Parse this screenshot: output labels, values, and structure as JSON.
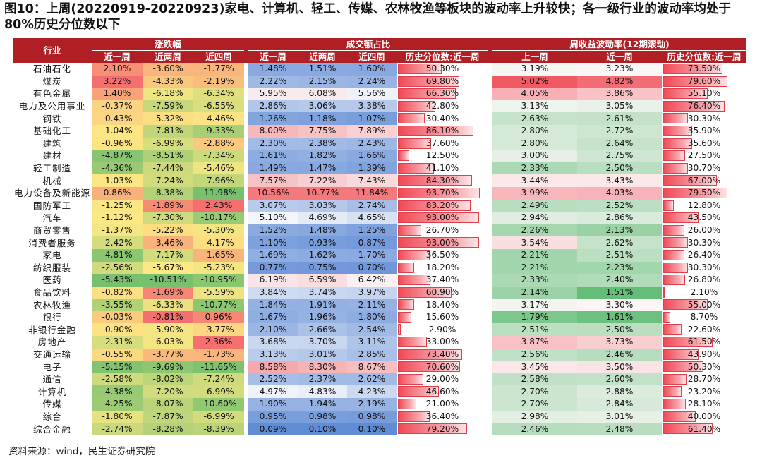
{
  "title": "图10：上周(20220919-20220923)家电、计算机、轻工、传媒、农林牧渔等板块的波动率上升较快；各一级行业的波动率均处于 80%历史分位数以下",
  "source": "资料来源：wind，民生证券研究院",
  "chart_data": {
    "type": "table",
    "group_headers": [
      "行业",
      "涨跌幅",
      "成交额占比",
      "周收益波动率(12期滚动)"
    ],
    "columns": [
      "近一周",
      "近两周",
      "近四周",
      "近一周",
      "近两周",
      "近四周",
      "历史分位数:近一周",
      "上一周",
      "近一周",
      "历史分位数:近一周"
    ],
    "rows": [
      {
        "industry": "石油石化",
        "chg": [
          "2.10%",
          "-3.60%",
          "-1.77%"
        ],
        "vol": [
          "1.48%",
          "1.51%",
          "1.60%"
        ],
        "vol_pct": "50.30%",
        "vol_pct_v": 50.3,
        "volat": [
          "3.19%",
          "3.23%"
        ],
        "volat_pct": "73.50%",
        "volat_pct_v": 73.5
      },
      {
        "industry": "煤炭",
        "chg": [
          "3.22%",
          "-4.33%",
          "-2.19%"
        ],
        "vol": [
          "2.22%",
          "2.15%",
          "2.24%"
        ],
        "vol_pct": "69.80%",
        "vol_pct_v": 69.8,
        "volat": [
          "5.02%",
          "4.82%"
        ],
        "volat_pct": "79.60%",
        "volat_pct_v": 79.6
      },
      {
        "industry": "有色金属",
        "chg": [
          "1.40%",
          "-6.18%",
          "-6.34%"
        ],
        "vol": [
          "5.95%",
          "6.08%",
          "5.56%"
        ],
        "vol_pct": "66.30%",
        "vol_pct_v": 66.3,
        "volat": [
          "4.05%",
          "3.86%"
        ],
        "volat_pct": "55.10%",
        "volat_pct_v": 55.1
      },
      {
        "industry": "电力及公用事业",
        "chg": [
          "-0.37%",
          "-7.59%",
          "-6.55%"
        ],
        "vol": [
          "2.86%",
          "3.06%",
          "3.38%"
        ],
        "vol_pct": "42.80%",
        "vol_pct_v": 42.8,
        "volat": [
          "3.13%",
          "3.05%"
        ],
        "volat_pct": "76.40%",
        "volat_pct_v": 76.4
      },
      {
        "industry": "钢铁",
        "chg": [
          "-0.43%",
          "-5.32%",
          "-4.46%"
        ],
        "vol": [
          "1.26%",
          "1.18%",
          "1.07%"
        ],
        "vol_pct": "30.40%",
        "vol_pct_v": 30.4,
        "volat": [
          "2.63%",
          "2.61%"
        ],
        "volat_pct": "30.30%",
        "volat_pct_v": 30.3
      },
      {
        "industry": "基础化工",
        "chg": [
          "-1.04%",
          "-7.81%",
          "-9.33%"
        ],
        "vol": [
          "8.00%",
          "7.75%",
          "7.89%"
        ],
        "vol_pct": "86.10%",
        "vol_pct_v": 86.1,
        "volat": [
          "2.80%",
          "2.72%"
        ],
        "volat_pct": "35.90%",
        "volat_pct_v": 35.9
      },
      {
        "industry": "建筑",
        "chg": [
          "-0.96%",
          "-6.99%",
          "-2.88%"
        ],
        "vol": [
          "2.30%",
          "2.38%",
          "2.43%"
        ],
        "vol_pct": "37.60%",
        "vol_pct_v": 37.6,
        "volat": [
          "2.80%",
          "2.64%"
        ],
        "volat_pct": "35.60%",
        "volat_pct_v": 35.6
      },
      {
        "industry": "建材",
        "chg": [
          "-4.87%",
          "-8.51%",
          "-7.34%"
        ],
        "vol": [
          "1.61%",
          "1.82%",
          "1.66%"
        ],
        "vol_pct": "12.50%",
        "vol_pct_v": 12.5,
        "volat": [
          "3.00%",
          "2.75%"
        ],
        "volat_pct": "27.50%",
        "volat_pct_v": 27.5
      },
      {
        "industry": "轻工制造",
        "chg": [
          "-4.36%",
          "-7.44%",
          "-5.46%"
        ],
        "vol": [
          "1.49%",
          "1.47%",
          "1.39%"
        ],
        "vol_pct": "41.10%",
        "vol_pct_v": 41.1,
        "volat": [
          "2.33%",
          "2.50%"
        ],
        "volat_pct": "30.70%",
        "volat_pct_v": 30.7
      },
      {
        "industry": "机械",
        "chg": [
          "-1.03%",
          "-7.24%",
          "-7.96%"
        ],
        "vol": [
          "7.57%",
          "7.22%",
          "7.43%"
        ],
        "vol_pct": "84.30%",
        "vol_pct_v": 84.3,
        "volat": [
          "3.44%",
          "3.43%"
        ],
        "volat_pct": "67.00%",
        "volat_pct_v": 67.0
      },
      {
        "industry": "电力设备及新能源",
        "chg": [
          "0.86%",
          "-8.38%",
          "-11.98%"
        ],
        "vol": [
          "10.56%",
          "10.77%",
          "11.84%"
        ],
        "vol_pct": "93.70%",
        "vol_pct_v": 93.7,
        "volat": [
          "3.99%",
          "4.03%"
        ],
        "volat_pct": "79.50%",
        "volat_pct_v": 79.5
      },
      {
        "industry": "国防军工",
        "chg": [
          "-1.25%",
          "-1.89%",
          "2.43%"
        ],
        "vol": [
          "3.07%",
          "3.03%",
          "2.74%"
        ],
        "vol_pct": "83.20%",
        "vol_pct_v": 83.2,
        "volat": [
          "2.49%",
          "2.52%"
        ],
        "volat_pct": "12.80%",
        "volat_pct_v": 12.8
      },
      {
        "industry": "汽车",
        "chg": [
          "-1.12%",
          "-7.30%",
          "-10.17%"
        ],
        "vol": [
          "5.10%",
          "4.69%",
          "4.65%"
        ],
        "vol_pct": "93.00%",
        "vol_pct_v": 93.0,
        "volat": [
          "2.94%",
          "2.86%"
        ],
        "volat_pct": "43.50%",
        "volat_pct_v": 43.5
      },
      {
        "industry": "商贸零售",
        "chg": [
          "-1.37%",
          "-5.22%",
          "-5.30%"
        ],
        "vol": [
          "1.52%",
          "1.48%",
          "1.25%"
        ],
        "vol_pct": "26.70%",
        "vol_pct_v": 26.7,
        "volat": [
          "2.26%",
          "2.13%"
        ],
        "volat_pct": "26.00%",
        "volat_pct_v": 26.0
      },
      {
        "industry": "消费者服务",
        "chg": [
          "-2.42%",
          "-3.46%",
          "-4.17%"
        ],
        "vol": [
          "1.10%",
          "0.93%",
          "0.87%"
        ],
        "vol_pct": "93.00%",
        "vol_pct_v": 93.0,
        "volat": [
          "3.54%",
          "2.62%"
        ],
        "volat_pct": "30.30%",
        "volat_pct_v": 30.3
      },
      {
        "industry": "家电",
        "chg": [
          "-4.81%",
          "-7.17%",
          "-1.65%"
        ],
        "vol": [
          "1.69%",
          "1.62%",
          "1.70%"
        ],
        "vol_pct": "36.50%",
        "vol_pct_v": 36.5,
        "volat": [
          "2.21%",
          "2.51%"
        ],
        "volat_pct": "26.40%",
        "volat_pct_v": 26.4
      },
      {
        "industry": "纺织服装",
        "chg": [
          "-2.56%",
          "-5.67%",
          "-5.23%"
        ],
        "vol": [
          "0.77%",
          "0.75%",
          "0.70%"
        ],
        "vol_pct": "18.20%",
        "vol_pct_v": 18.2,
        "volat": [
          "2.21%",
          "2.23%"
        ],
        "volat_pct": "30.30%",
        "volat_pct_v": 30.3
      },
      {
        "industry": "医药",
        "chg": [
          "-5.43%",
          "-10.51%",
          "-10.95%"
        ],
        "vol": [
          "6.19%",
          "6.59%",
          "6.42%"
        ],
        "vol_pct": "37.40%",
        "vol_pct_v": 37.4,
        "volat": [
          "2.33%",
          "2.40%"
        ],
        "volat_pct": "26.80%",
        "volat_pct_v": 26.8
      },
      {
        "industry": "食品饮料",
        "chg": [
          "-0.82%",
          "-1.69%",
          "-5.59%"
        ],
        "vol": [
          "3.84%",
          "3.74%",
          "3.97%"
        ],
        "vol_pct": "60.90%",
        "vol_pct_v": 60.9,
        "volat": [
          "2.14%",
          "1.51%"
        ],
        "volat_pct": "2.10%",
        "volat_pct_v": 2.1
      },
      {
        "industry": "农林牧渔",
        "chg": [
          "-3.55%",
          "-6.33%",
          "-10.77%"
        ],
        "vol": [
          "1.84%",
          "1.91%",
          "2.11%"
        ],
        "vol_pct": "18.40%",
        "vol_pct_v": 18.4,
        "volat": [
          "3.17%",
          "3.30%"
        ],
        "volat_pct": "55.00%",
        "volat_pct_v": 55.0
      },
      {
        "industry": "银行",
        "chg": [
          "-0.03%",
          "-0.81%",
          "0.96%"
        ],
        "vol": [
          "1.67%",
          "1.96%",
          "1.80%"
        ],
        "vol_pct": "15.60%",
        "vol_pct_v": 15.6,
        "volat": [
          "1.79%",
          "1.61%"
        ],
        "volat_pct": "8.70%",
        "volat_pct_v": 8.7
      },
      {
        "industry": "非银行金融",
        "chg": [
          "-0.90%",
          "-5.90%",
          "-3.77%"
        ],
        "vol": [
          "2.10%",
          "2.66%",
          "2.54%"
        ],
        "vol_pct": "2.90%",
        "vol_pct_v": 2.9,
        "volat": [
          "2.51%",
          "2.50%"
        ],
        "volat_pct": "22.60%",
        "volat_pct_v": 22.6
      },
      {
        "industry": "房地产",
        "chg": [
          "-2.31%",
          "-6.03%",
          "2.36%"
        ],
        "vol": [
          "3.68%",
          "3.70%",
          "3.11%"
        ],
        "vol_pct": "33.00%",
        "vol_pct_v": 33.0,
        "volat": [
          "3.87%",
          "3.73%"
        ],
        "volat_pct": "61.50%",
        "volat_pct_v": 61.5
      },
      {
        "industry": "交通运输",
        "chg": [
          "-0.55%",
          "-3.77%",
          "-1.73%"
        ],
        "vol": [
          "3.13%",
          "3.01%",
          "2.85%"
        ],
        "vol_pct": "73.40%",
        "vol_pct_v": 73.4,
        "volat": [
          "2.56%",
          "2.46%"
        ],
        "volat_pct": "43.90%",
        "volat_pct_v": 43.9
      },
      {
        "industry": "电子",
        "chg": [
          "-5.15%",
          "-9.69%",
          "-11.65%"
        ],
        "vol": [
          "8.58%",
          "8.30%",
          "8.67%"
        ],
        "vol_pct": "70.60%",
        "vol_pct_v": 70.6,
        "volat": [
          "3.45%",
          "3.50%"
        ],
        "volat_pct": "50.30%",
        "volat_pct_v": 50.3
      },
      {
        "industry": "通信",
        "chg": [
          "-2.58%",
          "-8.02%",
          "-7.24%"
        ],
        "vol": [
          "2.52%",
          "2.37%",
          "2.62%"
        ],
        "vol_pct": "29.00%",
        "vol_pct_v": 29.0,
        "volat": [
          "2.58%",
          "2.60%"
        ],
        "volat_pct": "28.70%",
        "volat_pct_v": 28.7
      },
      {
        "industry": "计算机",
        "chg": [
          "-4.38%",
          "-7.20%",
          "-6.99%"
        ],
        "vol": [
          "4.97%",
          "4.83%",
          "4.23%"
        ],
        "vol_pct": "46.60%",
        "vol_pct_v": 46.6,
        "volat": [
          "2.70%",
          "2.88%"
        ],
        "volat_pct": "23.20%",
        "volat_pct_v": 23.2
      },
      {
        "industry": "传媒",
        "chg": [
          "-4.25%",
          "-8.07%",
          "-10.60%"
        ],
        "vol": [
          "1.90%",
          "1.94%",
          "2.19%"
        ],
        "vol_pct": "21.00%",
        "vol_pct_v": 21.0,
        "volat": [
          "2.70%",
          "2.84%"
        ],
        "volat_pct": "28.10%",
        "volat_pct_v": 28.1
      },
      {
        "industry": "综合",
        "chg": [
          "-1.80%",
          "-7.87%",
          "-6.99%"
        ],
        "vol": [
          "0.95%",
          "0.98%",
          "0.98%"
        ],
        "vol_pct": "36.40%",
        "vol_pct_v": 36.4,
        "volat": [
          "2.98%",
          "3.01%"
        ],
        "volat_pct": "40.00%",
        "volat_pct_v": 40.0
      },
      {
        "industry": "综合金融",
        "chg": [
          "-2.74%",
          "-8.28%",
          "-8.39%"
        ],
        "vol": [
          "0.09%",
          "0.10%",
          "0.10%"
        ],
        "vol_pct": "79.20%",
        "vol_pct_v": 79.2,
        "volat": [
          "2.46%",
          "2.48%"
        ],
        "volat_pct": "61.40%",
        "volat_pct_v": 61.4
      }
    ]
  }
}
